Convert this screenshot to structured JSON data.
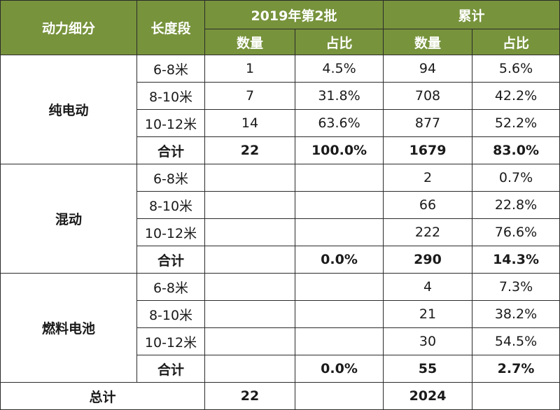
{
  "header": {
    "col_category": "动力细分",
    "col_length": "长度段",
    "group_batch": "2019年第2批",
    "group_cumulative": "累计",
    "sub_count": "数量",
    "sub_share": "占比"
  },
  "groups": [
    {
      "name": "纯电动",
      "rows": [
        {
          "length": "6-8米",
          "batch_count": "1",
          "batch_share": "4.5%",
          "cum_count": "94",
          "cum_share": "5.6%"
        },
        {
          "length": "8-10米",
          "batch_count": "7",
          "batch_share": "31.8%",
          "cum_count": "708",
          "cum_share": "42.2%"
        },
        {
          "length": "10-12米",
          "batch_count": "14",
          "batch_share": "63.6%",
          "cum_count": "877",
          "cum_share": "52.2%"
        }
      ],
      "subtotal": {
        "label": "合计",
        "batch_count": "22",
        "batch_share": "100.0%",
        "cum_count": "1679",
        "cum_share": "83.0%"
      }
    },
    {
      "name": "混动",
      "rows": [
        {
          "length": "6-8米",
          "batch_count": "",
          "batch_share": "",
          "cum_count": "2",
          "cum_share": "0.7%"
        },
        {
          "length": "8-10米",
          "batch_count": "",
          "batch_share": "",
          "cum_count": "66",
          "cum_share": "22.8%"
        },
        {
          "length": "10-12米",
          "batch_count": "",
          "batch_share": "",
          "cum_count": "222",
          "cum_share": "76.6%"
        }
      ],
      "subtotal": {
        "label": "合计",
        "batch_count": "",
        "batch_share": "0.0%",
        "cum_count": "290",
        "cum_share": "14.3%"
      }
    },
    {
      "name": "燃料电池",
      "rows": [
        {
          "length": "6-8米",
          "batch_count": "",
          "batch_share": "",
          "cum_count": "4",
          "cum_share": "7.3%"
        },
        {
          "length": "8-10米",
          "batch_count": "",
          "batch_share": "",
          "cum_count": "21",
          "cum_share": "38.2%"
        },
        {
          "length": "10-12米",
          "batch_count": "",
          "batch_share": "",
          "cum_count": "30",
          "cum_share": "54.5%"
        }
      ],
      "subtotal": {
        "label": "合计",
        "batch_count": "",
        "batch_share": "0.0%",
        "cum_count": "55",
        "cum_share": "2.7%"
      }
    }
  ],
  "total": {
    "label": "总计",
    "batch_count": "22",
    "batch_share": "",
    "cum_count": "2024",
    "cum_share": ""
  }
}
